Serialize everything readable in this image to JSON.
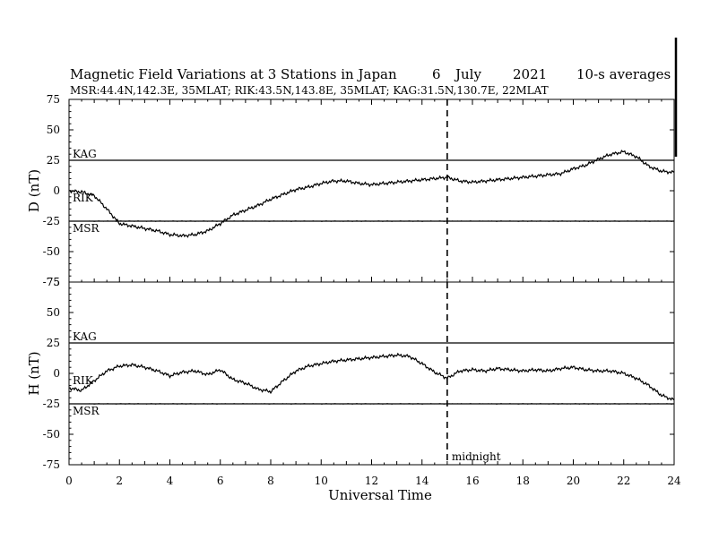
{
  "header": {
    "title": "Magnetic Field Variations at 3 Stations in Japan",
    "day": "6",
    "month": "July",
    "year": "2021",
    "averaging": "10-s averages",
    "stations_line": "MSR:44.4N,142.3E, 35MLAT;  RIK:43.5N,143.8E, 35MLAT;  KAG:31.5N,130.7E, 22MLAT"
  },
  "colors": {
    "ink": "#000000",
    "background": "#ffffff"
  },
  "chart_data": [
    {
      "type": "line",
      "panel": "D",
      "ylabel": "D (nT)",
      "xlabel": "",
      "xlim": [
        0,
        24
      ],
      "ylim": [
        -75,
        75
      ],
      "yticks": [
        75,
        50,
        25,
        0,
        -25,
        -50,
        -75
      ],
      "baselines": [
        {
          "name": "KAG",
          "y": 25
        },
        {
          "name": "RIK",
          "y": 0
        },
        {
          "name": "MSR",
          "y": -25
        }
      ],
      "series": [
        {
          "name": "KAG",
          "x": [
            0,
            0.5,
            1,
            1.5,
            2,
            2.5,
            3,
            3.5,
            4,
            4.5,
            5,
            5.5,
            6,
            6.5,
            7,
            7.5,
            8,
            8.5,
            9,
            9.5,
            10,
            10.5,
            11,
            11.5,
            12,
            12.5,
            13,
            13.5,
            14,
            14.5,
            15,
            15.5,
            16,
            16.5,
            17,
            17.5,
            18,
            18.5,
            19,
            19.5,
            20,
            20.5,
            21,
            21.5,
            22,
            22.5,
            23,
            23.5,
            24
          ],
          "values": [
            0,
            -1,
            -4,
            -15,
            -27,
            -29,
            -31,
            -33,
            -36,
            -37,
            -36,
            -33,
            -27,
            -20,
            -16,
            -12,
            -7,
            -3,
            1,
            3,
            6,
            8,
            8,
            6,
            5,
            6,
            7,
            8,
            9,
            10,
            11,
            8,
            7,
            8,
            9,
            10,
            11,
            12,
            13,
            14,
            18,
            21,
            26,
            30,
            32,
            28,
            20,
            16,
            15
          ]
        }
      ],
      "markers": [
        {
          "x": 15,
          "style": "dashed"
        }
      ]
    },
    {
      "type": "line",
      "panel": "H",
      "ylabel": "H (nT)",
      "xlabel": "Universal Time",
      "xlim": [
        0,
        24
      ],
      "ylim": [
        -75,
        75
      ],
      "yticks": [
        75,
        50,
        25,
        0,
        -25,
        -50,
        -75
      ],
      "xticks": [
        0,
        2,
        4,
        6,
        8,
        10,
        12,
        14,
        16,
        18,
        20,
        22,
        24
      ],
      "baselines": [
        {
          "name": "KAG",
          "y": 25
        },
        {
          "name": "RIK",
          "y": 0
        },
        {
          "name": "MSR",
          "y": -25
        }
      ],
      "series": [
        {
          "name": "KAG",
          "x": [
            0,
            0.5,
            1,
            1.5,
            2,
            2.5,
            3,
            3.5,
            4,
            4.5,
            5,
            5.5,
            6,
            6.5,
            7,
            7.5,
            8,
            8.5,
            9,
            9.5,
            10,
            10.5,
            11,
            11.5,
            12,
            12.5,
            13,
            13.5,
            14,
            14.5,
            15,
            15.5,
            16,
            16.5,
            17,
            17.5,
            18,
            18.5,
            19,
            19.5,
            20,
            20.5,
            21,
            21.5,
            22,
            22.5,
            23,
            23.5,
            24
          ],
          "values": [
            -12,
            -14,
            -6,
            2,
            6,
            7,
            5,
            2,
            -2,
            1,
            2,
            -1,
            3,
            -5,
            -8,
            -13,
            -15,
            -6,
            2,
            6,
            8,
            10,
            11,
            12,
            13,
            14,
            15,
            14,
            8,
            1,
            -4,
            2,
            3,
            2,
            4,
            3,
            2,
            3,
            2,
            4,
            5,
            3,
            2,
            2,
            0,
            -4,
            -10,
            -18,
            -22
          ]
        }
      ],
      "markers": [
        {
          "x": 15,
          "style": "dashed",
          "label": "midnight"
        }
      ]
    }
  ]
}
